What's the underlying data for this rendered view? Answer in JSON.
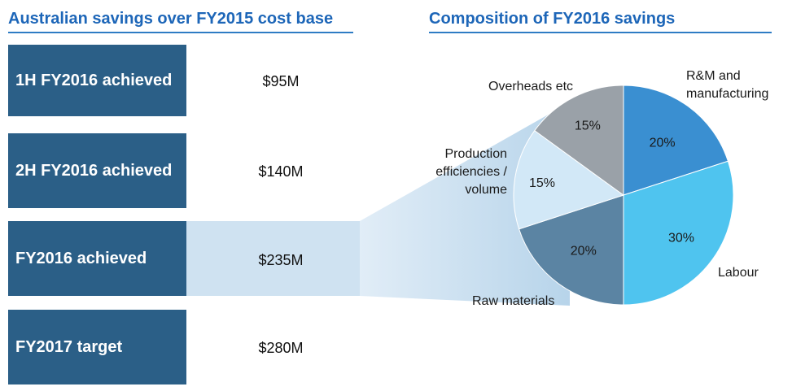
{
  "left_panel": {
    "title": "Australian savings over FY2015 cost base",
    "rows": [
      {
        "label": "1H FY2016 achieved",
        "value": "$95M"
      },
      {
        "label": "2H FY2016 achieved",
        "value": "$140M"
      },
      {
        "label": "FY2016 achieved",
        "value": "$235M"
      },
      {
        "label": "FY2017 target",
        "value": "$280M"
      }
    ],
    "highlighted_row": "FY2016 achieved"
  },
  "chart_data": {
    "type": "pie",
    "title": "Composition of FY2016 savings",
    "slices": [
      {
        "label": "R&M and manufacturing",
        "value": 20,
        "display": "20%",
        "color": "#3a8fd1"
      },
      {
        "label": "Labour",
        "value": 30,
        "display": "30%",
        "color": "#4fc4ef"
      },
      {
        "label": "Raw materials",
        "value": 20,
        "display": "20%",
        "color": "#5b84a3"
      },
      {
        "label": "Production efficiencies / volume",
        "value": 15,
        "display": "15%",
        "color": "#d2e8f7"
      },
      {
        "label": "Overheads etc",
        "value": 15,
        "display": "15%",
        "color": "#9aa1a8"
      }
    ],
    "start_angle_deg": 0,
    "direction": "clockwise"
  },
  "colors": {
    "heading": "#1d66b8",
    "row_fill": "#2b5f87",
    "highlight": "#cfe2f1",
    "connector": "#b7d4ea"
  }
}
